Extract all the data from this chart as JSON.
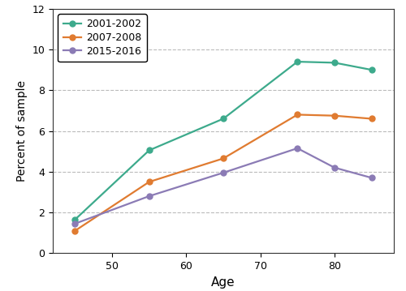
{
  "series": [
    {
      "label": "2001-2002",
      "color": "#3DAA8C",
      "x": [
        45,
        55,
        65,
        75,
        80,
        85
      ],
      "y": [
        1.65,
        5.05,
        6.6,
        9.4,
        9.35,
        9.0
      ]
    },
    {
      "label": "2007-2008",
      "color": "#E07B30",
      "x": [
        45,
        55,
        65,
        75,
        80,
        85
      ],
      "y": [
        1.1,
        3.5,
        4.65,
        6.8,
        6.75,
        6.6
      ]
    },
    {
      "label": "2015-2016",
      "color": "#8B7BB5",
      "x": [
        45,
        55,
        65,
        75,
        80,
        85
      ],
      "y": [
        1.45,
        2.8,
        3.95,
        5.15,
        4.2,
        3.7
      ]
    }
  ],
  "xlabel": "Age",
  "ylabel": "Percent of sample",
  "xlim": [
    42,
    88
  ],
  "ylim": [
    0,
    12
  ],
  "yticks": [
    0,
    2,
    4,
    6,
    8,
    10,
    12
  ],
  "xticks": [
    50,
    60,
    70,
    80
  ],
  "grid_color": "#BBBBBB",
  "marker": "o",
  "markersize": 5,
  "linewidth": 1.6,
  "legend_loc": "upper left",
  "background_color": "#FFFFFF",
  "spine_color": "#333333",
  "tick_labelsize": 9,
  "xlabel_fontsize": 11,
  "ylabel_fontsize": 10,
  "legend_fontsize": 9
}
